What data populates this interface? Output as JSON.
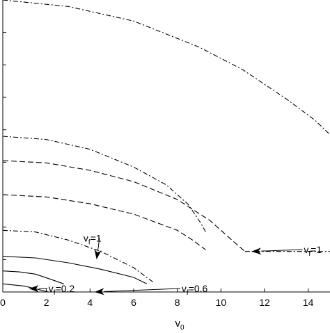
{
  "chart_data": {
    "type": "line",
    "title": "",
    "xlabel": "v_0",
    "ylabel": "",
    "xlim": [
      0,
      15
    ],
    "ylim": [
      0,
      9
    ],
    "x_ticks": [
      0,
      2,
      4,
      6,
      8,
      10,
      12,
      14
    ],
    "x_tick_labels": [
      "0",
      "2",
      "4",
      "6",
      "8",
      "10",
      "12",
      "14"
    ],
    "y_ticks": [
      0,
      1,
      2,
      3,
      4,
      5,
      6,
      7,
      8,
      9
    ],
    "y_tick_labels": [],
    "grid": false,
    "series": [
      {
        "style": "dashdot",
        "x": [
          0,
          3,
          6,
          9,
          11,
          13,
          14.3,
          15
        ],
        "y": [
          9.0,
          8.8,
          8.35,
          7.55,
          6.85,
          5.95,
          5.3,
          4.85
        ]
      },
      {
        "style": "dashdot",
        "x": [
          0,
          2,
          4,
          6,
          7.5,
          8.5,
          9.1,
          9.3
        ],
        "y": [
          4.8,
          4.7,
          4.4,
          3.85,
          3.3,
          2.7,
          2.1,
          1.85
        ]
      },
      {
        "style": "dashed",
        "x": [
          0,
          2,
          4,
          6,
          8,
          9.5,
          10.5,
          11.1
        ],
        "y": [
          4.05,
          3.98,
          3.75,
          3.4,
          2.85,
          2.2,
          1.6,
          1.25
        ]
      },
      {
        "style": "dashed",
        "x": [
          0,
          2,
          4,
          6,
          8,
          8.7,
          9.3
        ],
        "y": [
          3.0,
          2.93,
          2.72,
          2.4,
          1.9,
          1.6,
          1.3
        ]
      },
      {
        "style": "dashdot",
        "x": [
          0,
          1.5,
          3,
          4.5,
          6,
          6.9
        ],
        "y": [
          1.9,
          1.85,
          1.6,
          1.25,
          0.75,
          0.3
        ]
      },
      {
        "style": "solid",
        "x": [
          0,
          1.5,
          3,
          4.5,
          6,
          6.6
        ],
        "y": [
          1.1,
          1.05,
          0.9,
          0.7,
          0.45,
          0.25
        ]
      },
      {
        "style": "solid",
        "x": [
          0,
          0.75,
          1.5,
          2.25,
          2.8
        ],
        "y": [
          0.65,
          0.62,
          0.55,
          0.38,
          0.25
        ]
      },
      {
        "style": "solid",
        "x": [
          0,
          1,
          2.1
        ],
        "y": [
          0.25,
          0.18,
          0.0
        ]
      },
      {
        "style": "dashdot",
        "x": [
          11.1,
          11.5,
          12,
          13,
          14,
          15
        ],
        "y": [
          1.25,
          1.25,
          1.25,
          1.25,
          1.25,
          1.25
        ]
      }
    ],
    "annotations": [
      {
        "text": "v_f=1",
        "text_xy": [
          3.7,
          1.55
        ],
        "arrow_to": [
          4.3,
          1.0
        ]
      },
      {
        "text": "v_f=0.2",
        "text_xy": [
          2.1,
          0.0
        ],
        "arrow_to": [
          1.2,
          0.1
        ]
      },
      {
        "text": "v_f=0.6",
        "text_xy": [
          8.2,
          0.0
        ],
        "arrow_to": [
          4.2,
          0.0
        ]
      },
      {
        "text": "v_f=1",
        "text_xy": [
          13.8,
          1.2
        ],
        "arrow_to": [
          11.4,
          1.25
        ]
      }
    ]
  }
}
